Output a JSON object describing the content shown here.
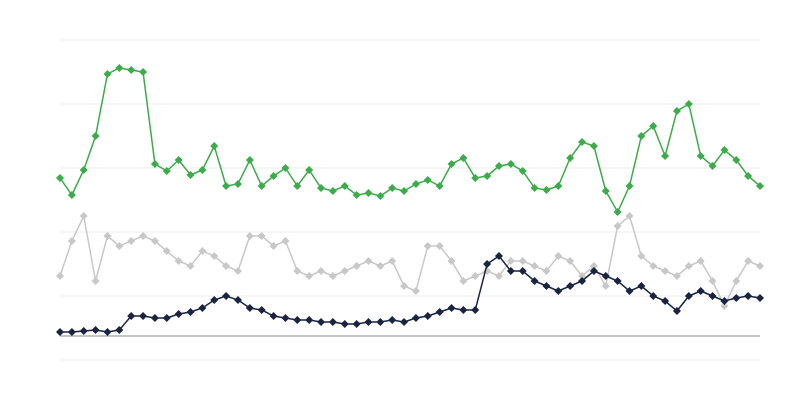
{
  "chart_data": {
    "type": "line",
    "x": [
      0,
      1,
      2,
      3,
      4,
      5,
      6,
      7,
      8,
      9,
      10,
      11,
      12,
      13,
      14,
      15,
      16,
      17,
      18,
      19,
      20,
      21,
      22,
      23,
      24,
      25,
      26,
      27,
      28,
      29,
      30,
      31,
      32,
      33,
      34,
      35,
      36,
      37,
      38,
      39,
      40,
      41,
      42,
      43,
      44,
      45,
      46,
      47,
      48,
      49,
      50,
      51,
      52,
      53,
      54,
      55,
      56,
      57,
      58,
      59
    ],
    "xlim": [
      0,
      59
    ],
    "ylim": [
      -24,
      296
    ],
    "yticks": [
      -24,
      40,
      104,
      168,
      232,
      296
    ],
    "grid": true,
    "series": [
      {
        "color": "#c8c8c8",
        "values": [
          60,
          95,
          120,
          55,
          100,
          90,
          95,
          100,
          95,
          85,
          75,
          70,
          85,
          80,
          70,
          65,
          100,
          100,
          90,
          95,
          65,
          60,
          65,
          60,
          65,
          70,
          75,
          70,
          75,
          50,
          45,
          90,
          90,
          75,
          55,
          60,
          65,
          60,
          75,
          75,
          70,
          65,
          80,
          75,
          60,
          70,
          50,
          110,
          120,
          80,
          70,
          65,
          60,
          70,
          75,
          55,
          30,
          55,
          75,
          70
        ]
      },
      {
        "color": "#3cab4a",
        "values": [
          158,
          141,
          166,
          200,
          262,
          268,
          266,
          264,
          172,
          165,
          176,
          161,
          166,
          190,
          150,
          152,
          176,
          150,
          160,
          168,
          150,
          166,
          148,
          145,
          150,
          141,
          143,
          140,
          148,
          145,
          152,
          156,
          150,
          172,
          178,
          158,
          160,
          170,
          172,
          165,
          148,
          146,
          150,
          178,
          194,
          190,
          145,
          124,
          150,
          200,
          210,
          180,
          225,
          232,
          180,
          170,
          186,
          176,
          160,
          150
        ]
      },
      {
        "color": "#1a2340",
        "values": [
          4,
          4,
          5,
          6,
          4,
          6,
          20,
          20,
          18,
          18,
          22,
          24,
          28,
          36,
          40,
          36,
          28,
          26,
          20,
          18,
          16,
          16,
          14,
          14,
          12,
          12,
          14,
          14,
          16,
          14,
          18,
          20,
          24,
          28,
          26,
          26,
          72,
          80,
          65,
          65,
          55,
          50,
          45,
          50,
          55,
          65,
          60,
          55,
          45,
          50,
          40,
          35,
          25,
          40,
          45,
          40,
          35,
          38,
          40,
          38
        ]
      }
    ]
  }
}
